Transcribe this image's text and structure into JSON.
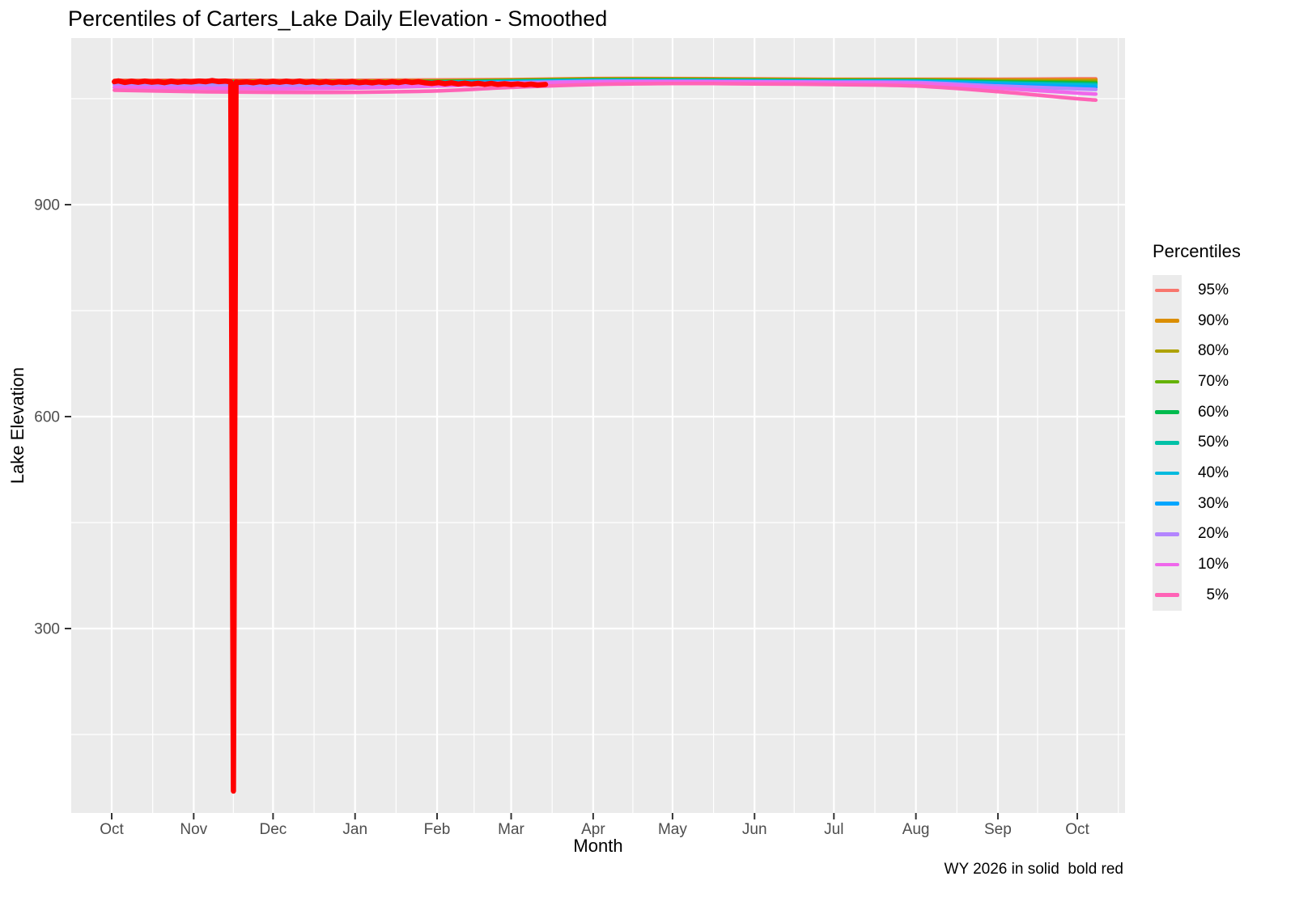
{
  "chart_data": {
    "type": "line",
    "title": "Percentiles of Carters_Lake Daily Elevation - Smoothed",
    "xlabel": "Month",
    "ylabel": "Lake Elevation",
    "caption": "WY 2026 in solid  bold red",
    "panel_background": "#EBEBEB",
    "gridline_color": "#FFFFFF",
    "x_axis": {
      "tick_labels": [
        "Oct",
        "Nov",
        "Dec",
        "Jan",
        "Feb",
        "Mar",
        "Apr",
        "May",
        "Jun",
        "Jul",
        "Aug",
        "Sep",
        "Oct"
      ],
      "tick_days": [
        0,
        31,
        61,
        92,
        123,
        151,
        182,
        212,
        243,
        273,
        304,
        335,
        365
      ],
      "minor_days": [
        15.5,
        46,
        76.5,
        107.5,
        137,
        166.5,
        197,
        227.5,
        258,
        288.5,
        319.5,
        350,
        380.5
      ],
      "range_days": [
        -15.3,
        384.6
      ]
    },
    "y_axis": {
      "ticks": [
        300,
        600,
        900
      ],
      "minor_ticks": [
        150,
        450,
        750,
        1050
      ],
      "range": [
        39,
        1136
      ]
    },
    "legend": {
      "title": "Percentiles",
      "position": "right"
    },
    "percentile_x_days": [
      1,
      31,
      61,
      92,
      123,
      151,
      182,
      212,
      243,
      273,
      304,
      335,
      365,
      372
    ],
    "series": [
      {
        "name": "95%",
        "color": "#F8766D",
        "values": [
          1076,
          1076,
          1076,
          1076,
          1076.5,
          1077,
          1078.5,
          1078.5,
          1078,
          1077.5,
          1077.5,
          1077.5,
          1078,
          1078
        ]
      },
      {
        "name": "90%",
        "color": "#DB8E00",
        "values": [
          1075,
          1075,
          1075,
          1075,
          1075.5,
          1076.5,
          1078,
          1078,
          1077.5,
          1077,
          1077,
          1076.5,
          1076.5,
          1076.5
        ]
      },
      {
        "name": "80%",
        "color": "#AEA200",
        "values": [
          1074.5,
          1074.5,
          1074.5,
          1074.5,
          1075,
          1076,
          1077.5,
          1077.5,
          1077,
          1076.5,
          1076.5,
          1075.5,
          1075,
          1074.8
        ]
      },
      {
        "name": "70%",
        "color": "#64B200",
        "values": [
          1074,
          1074,
          1074,
          1074,
          1074.5,
          1075.5,
          1077,
          1077,
          1076.5,
          1076,
          1076,
          1074.5,
          1073.5,
          1073.2
        ]
      },
      {
        "name": "60%",
        "color": "#00BB4E",
        "values": [
          1073.5,
          1073.5,
          1073.5,
          1073.5,
          1074,
          1075,
          1076.5,
          1076.5,
          1076,
          1075.5,
          1075.5,
          1073.5,
          1072,
          1071.6
        ]
      },
      {
        "name": "50%",
        "color": "#00C1A7",
        "values": [
          1073,
          1073,
          1073,
          1073,
          1073.5,
          1074.5,
          1076,
          1076,
          1075.5,
          1075,
          1075,
          1072.5,
          1070.5,
          1070
        ]
      },
      {
        "name": "40%",
        "color": "#00BADE",
        "values": [
          1072.5,
          1072,
          1072,
          1072,
          1073,
          1074,
          1075.5,
          1075.5,
          1075,
          1074.5,
          1074.5,
          1071.5,
          1069,
          1068.4
        ]
      },
      {
        "name": "30%",
        "color": "#00A6FF",
        "values": [
          1072,
          1071,
          1071,
          1071,
          1072.5,
          1073.5,
          1075,
          1075,
          1074.5,
          1074,
          1074,
          1070,
          1067,
          1066.2
        ]
      },
      {
        "name": "20%",
        "color": "#B385FF",
        "values": [
          1070,
          1069,
          1068.5,
          1069,
          1071,
          1072.5,
          1074.5,
          1074.5,
          1074,
          1073.5,
          1073,
          1068,
          1064,
          1063
        ]
      },
      {
        "name": "10%",
        "color": "#EF67EB",
        "values": [
          1066,
          1065,
          1064,
          1065,
          1068,
          1071,
          1073.5,
          1074,
          1073.5,
          1072.5,
          1071.5,
          1065,
          1058,
          1056.5
        ]
      },
      {
        "name": "5%",
        "color": "#FF63B6",
        "values": [
          1062,
          1060,
          1059,
          1059,
          1061,
          1066,
          1070,
          1071.5,
          1071,
          1070,
          1068,
          1060,
          1050,
          1048
        ]
      }
    ],
    "wy2026_line": {
      "name": "WY 2026",
      "color": "#FF0000",
      "points": [
        [
          1,
          1074
        ],
        [
          2.5,
          1075.2
        ],
        [
          5,
          1073
        ],
        [
          7.5,
          1074.6
        ],
        [
          10,
          1073.2
        ],
        [
          12.5,
          1074.8
        ],
        [
          15,
          1073.4
        ],
        [
          17.5,
          1074.2
        ],
        [
          20,
          1072.8
        ],
        [
          22.5,
          1074.6
        ],
        [
          25,
          1073.2
        ],
        [
          27.5,
          1074.4
        ],
        [
          30,
          1073.6
        ],
        [
          33,
          1075
        ],
        [
          35.5,
          1074
        ],
        [
          38,
          1075.6
        ],
        [
          40.5,
          1074.2
        ],
        [
          43,
          1074.8
        ],
        [
          45,
          1073.8
        ],
        [
          46,
          70
        ],
        [
          47,
          1073.6
        ],
        [
          48,
          1073
        ],
        [
          51,
          1073.8
        ],
        [
          53.5,
          1072.6
        ],
        [
          56,
          1074.2
        ],
        [
          58.5,
          1073
        ],
        [
          61,
          1074.4
        ],
        [
          63.5,
          1073.2
        ],
        [
          66,
          1074.6
        ],
        [
          68.5,
          1073.4
        ],
        [
          71,
          1074.8
        ],
        [
          73.5,
          1073
        ],
        [
          76,
          1074.2
        ],
        [
          78.5,
          1072.8
        ],
        [
          81,
          1074
        ],
        [
          83.5,
          1072.6
        ],
        [
          86,
          1073.8
        ],
        [
          88.5,
          1073
        ],
        [
          91,
          1074.2
        ],
        [
          93.5,
          1072.6
        ],
        [
          96,
          1073.6
        ],
        [
          98.5,
          1072.4
        ],
        [
          101,
          1073.8
        ],
        [
          103.5,
          1072.6
        ],
        [
          106,
          1074
        ],
        [
          108.5,
          1072.8
        ],
        [
          111,
          1074.4
        ],
        [
          113.5,
          1073
        ],
        [
          116,
          1074
        ],
        [
          118.5,
          1072.4
        ],
        [
          121,
          1071.6
        ],
        [
          123.5,
          1072.8
        ],
        [
          126,
          1071.2
        ],
        [
          128.5,
          1072.4
        ],
        [
          131,
          1070.8
        ],
        [
          133.5,
          1072
        ],
        [
          136,
          1070.6
        ],
        [
          138.5,
          1071.8
        ],
        [
          141,
          1070.4
        ],
        [
          143.5,
          1071.6
        ],
        [
          146,
          1070.2
        ],
        [
          148.5,
          1071.2
        ],
        [
          151,
          1070
        ],
        [
          153.5,
          1071
        ],
        [
          156,
          1069.6
        ],
        [
          158.5,
          1070.6
        ],
        [
          161,
          1069.4
        ],
        [
          164,
          1070.2
        ]
      ]
    }
  }
}
